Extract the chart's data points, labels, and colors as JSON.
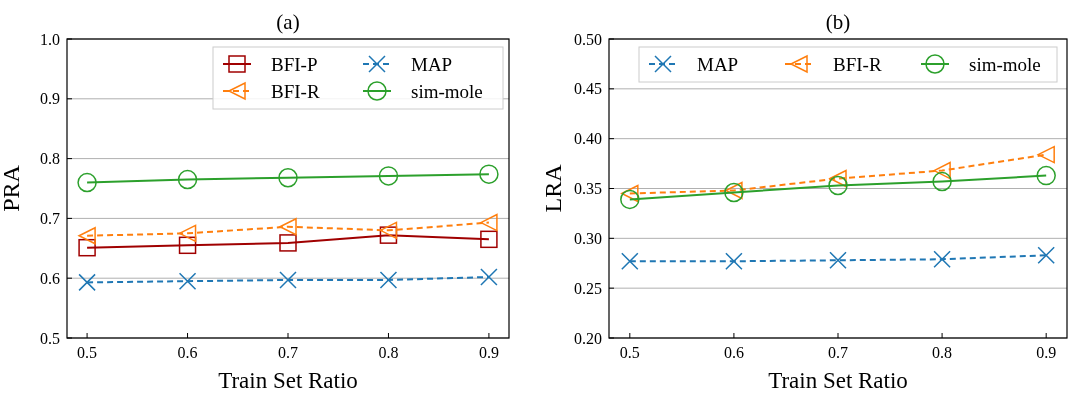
{
  "chart_data": [
    {
      "type": "line",
      "title": "(a)",
      "xlabel": "Train Set Ratio",
      "ylabel": "PRA",
      "x": [
        0.5,
        0.6,
        0.7,
        0.8,
        0.9
      ],
      "xlim": [
        0.48,
        0.92
      ],
      "xticks": [
        0.5,
        0.6,
        0.7,
        0.8,
        0.9
      ],
      "ylim": [
        0.5,
        1.0
      ],
      "yticks": [
        0.5,
        0.6,
        0.7,
        0.8,
        0.9,
        {
          "value": 1.0,
          "label": "1.0"
        }
      ],
      "grid": "y",
      "legend": "top right",
      "series": [
        {
          "name": "BFI-P",
          "color": "#a00000",
          "marker": "square",
          "line_style": "solid",
          "values": [
            0.651,
            0.655,
            0.659,
            0.672,
            0.665
          ]
        },
        {
          "name": "BFI-R",
          "color": "#ff7f0e",
          "marker": "triangle",
          "line_style": "dashed",
          "values": [
            0.671,
            0.675,
            0.686,
            0.68,
            0.693
          ]
        },
        {
          "name": "MAP",
          "color": "#1f77b4",
          "marker": "cross",
          "line_style": "dashed",
          "values": [
            0.593,
            0.595,
            0.597,
            0.597,
            0.602
          ]
        },
        {
          "name": "sim-mole",
          "color": "#2ca02c",
          "marker": "circle",
          "line_style": "solid",
          "values": [
            0.76,
            0.765,
            0.768,
            0.771,
            0.774
          ]
        }
      ]
    },
    {
      "type": "line",
      "title": "(b)",
      "xlabel": "Train Set Ratio",
      "ylabel": "LRA",
      "x": [
        0.5,
        0.6,
        0.7,
        0.8,
        0.9
      ],
      "xlim": [
        0.48,
        0.92
      ],
      "xticks": [
        0.5,
        0.6,
        0.7,
        0.8,
        0.9
      ],
      "ylim": [
        0.2,
        0.5
      ],
      "yticks": [
        {
          "value": 0.2,
          "label": "0.20"
        },
        {
          "value": 0.25,
          "label": "0.25"
        },
        {
          "value": 0.3,
          "label": "0.30"
        },
        {
          "value": 0.35,
          "label": "0.35"
        },
        {
          "value": 0.4,
          "label": "0.40"
        },
        {
          "value": 0.45,
          "label": "0.45"
        },
        {
          "value": 0.5,
          "label": "0.50"
        }
      ],
      "grid": "y",
      "legend": "top",
      "series": [
        {
          "name": "MAP",
          "color": "#1f77b4",
          "marker": "cross",
          "line_style": "dashed",
          "values": [
            0.277,
            0.277,
            0.278,
            0.279,
            0.283
          ]
        },
        {
          "name": "BFI-R",
          "color": "#ff7f0e",
          "marker": "triangle",
          "line_style": "dashed",
          "values": [
            0.345,
            0.348,
            0.36,
            0.368,
            0.384
          ]
        },
        {
          "name": "sim-mole",
          "color": "#2ca02c",
          "marker": "circle",
          "line_style": "solid",
          "values": [
            0.339,
            0.346,
            0.353,
            0.357,
            0.363
          ]
        }
      ]
    }
  ]
}
